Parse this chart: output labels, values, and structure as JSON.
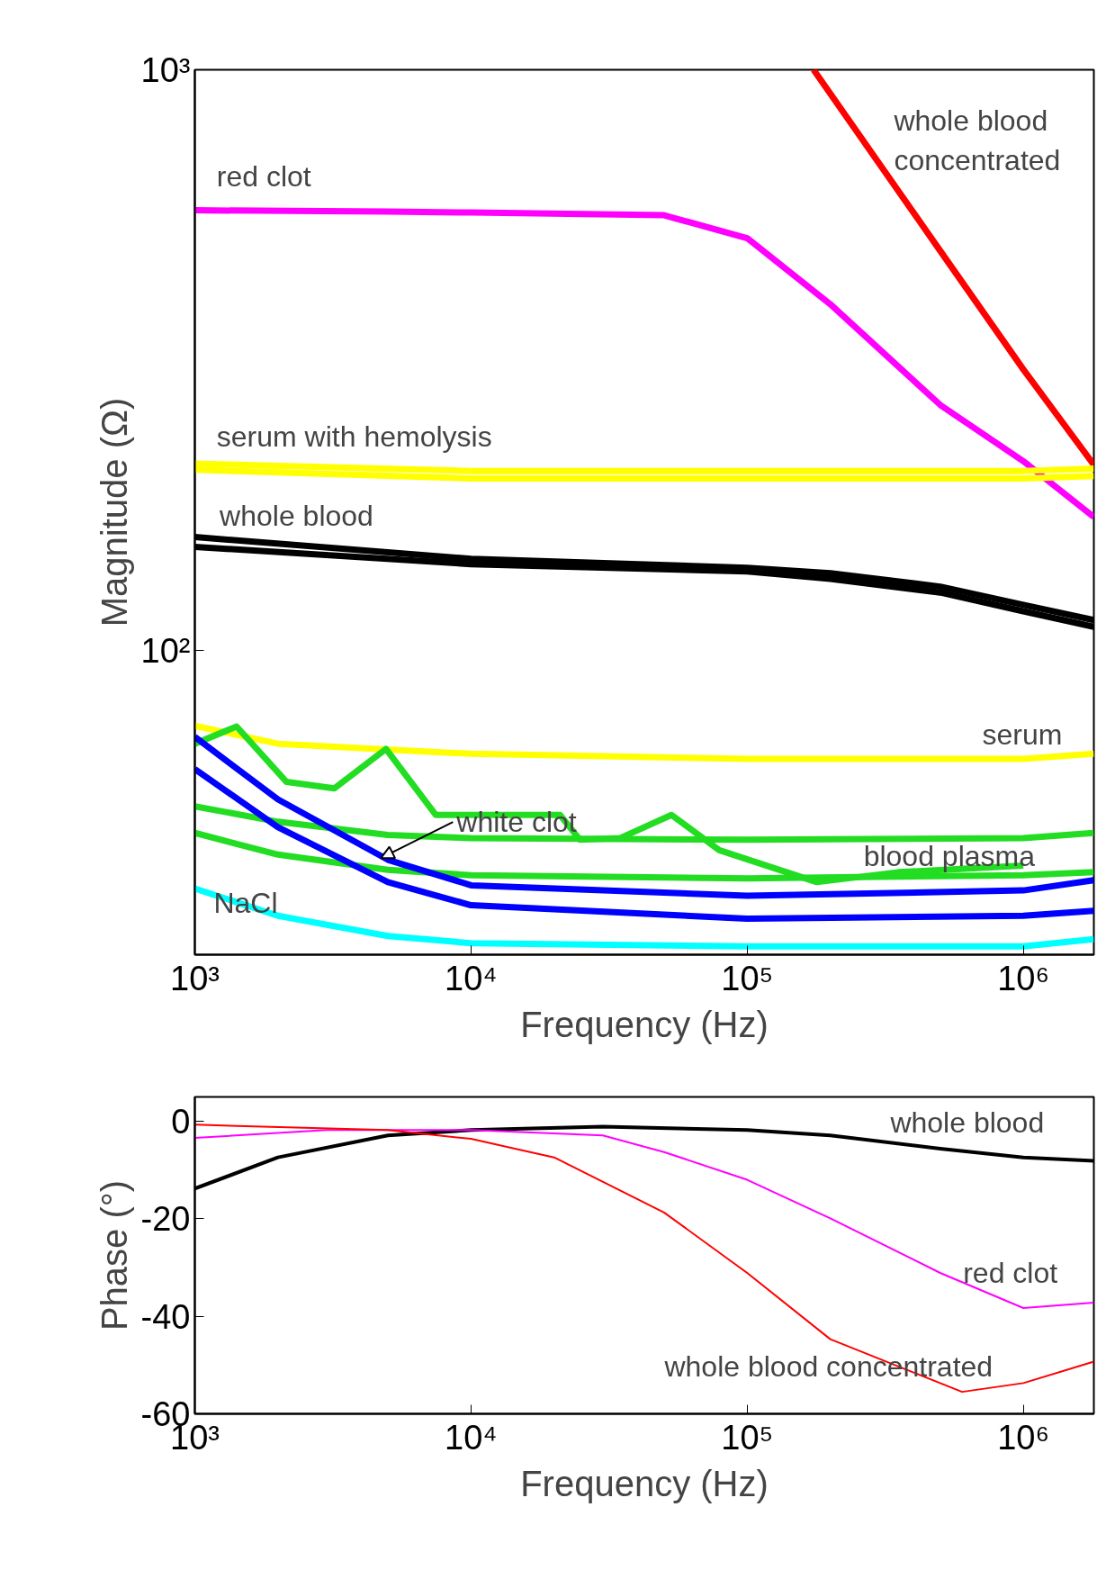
{
  "chart_data": [
    {
      "type": "line",
      "xlabel": "Frequency (Hz)",
      "ylabel": "Magnitude (Ω)",
      "log": "xy",
      "grid": false,
      "line_style": "solid",
      "xlim": [
        1000,
        1800000
      ],
      "ylim": [
        30,
        1000
      ],
      "xticks": [
        {
          "value": 1000,
          "label": "10³"
        },
        {
          "value": 10000,
          "label": "10⁴"
        },
        {
          "value": 100000,
          "label": "10⁵"
        },
        {
          "value": 1000000,
          "label": "10⁶"
        }
      ],
      "yticks": [
        {
          "value": 100,
          "label": "10²"
        },
        {
          "value": 1000,
          "label": "10³"
        }
      ],
      "series": [
        {
          "color": "#ff00ff",
          "x": [
            1000,
            5000,
            10000,
            50000,
            100000,
            200000,
            500000,
            1000000,
            1800000
          ],
          "values": [
            573,
            570,
            568,
            562,
            513,
            395,
            265,
            212,
            170
          ]
        },
        {
          "color": "#ff0000",
          "x": [
            174000,
            500000,
            1000000,
            1800000
          ],
          "values": [
            1000,
            488,
            305,
            209
          ]
        },
        {
          "color": "#ffff00",
          "x": [
            1000,
            10000,
            100000,
            1000000,
            1800000
          ],
          "values": [
            210,
            204,
            204,
            204,
            206
          ]
        },
        {
          "color": "#ffff00",
          "x": [
            1000,
            10000,
            100000,
            1000000,
            1800000
          ],
          "values": [
            205,
            198,
            198,
            198,
            200
          ]
        },
        {
          "color": "#000000",
          "x": [
            1000,
            10000,
            100000,
            200000,
            500000,
            1000000,
            1800000
          ],
          "values": [
            157,
            144,
            139,
            136,
            129,
            120,
            113
          ]
        },
        {
          "color": "#000000",
          "x": [
            1000,
            10000,
            100000,
            200000,
            500000,
            1000000,
            1800000
          ],
          "values": [
            151,
            141,
            137,
            133,
            126,
            117,
            110
          ]
        },
        {
          "color": "#ffff00",
          "x": [
            1000,
            2000,
            10000,
            100000,
            1000000,
            1800000
          ],
          "values": [
            74.3,
            69.2,
            66.5,
            65.2,
            65.2,
            66.5
          ]
        },
        {
          "color": "#22dd22",
          "x": [
            1000,
            2000,
            5000,
            10000,
            100000,
            1000000,
            1800000
          ],
          "values": [
            54,
            50.8,
            48.2,
            47.6,
            47.3,
            47.6,
            48.6
          ]
        },
        {
          "color": "#22dd22",
          "x": [
            1000,
            2000,
            5000,
            10000,
            100000,
            1000000,
            1800000
          ],
          "values": [
            48.6,
            44.6,
            42,
            41.1,
            40.6,
            41.1,
            41.6
          ]
        },
        {
          "color": "#22dd22",
          "x": [
            1000,
            1416,
            2148,
            3200,
            4920,
            7450,
            21000,
            24800,
            34600,
            53200,
            79200,
            178600,
            353000,
            1000000
          ],
          "values": [
            69.2,
            74.1,
            59.5,
            58,
            67.8,
            52.2,
            52.2,
            47.3,
            47.6,
            52.2,
            45.4,
            40,
            41.6,
            42.7
          ]
        },
        {
          "color": "#0000ff",
          "x": [
            1000,
            2000,
            5000,
            10000,
            100000,
            1000000,
            1800000
          ],
          "values": [
            71.1,
            55.5,
            43.7,
            39.5,
            37.9,
            38.7,
            40.3
          ]
        },
        {
          "color": "#0000ff",
          "x": [
            1000,
            2000,
            5000,
            10000,
            100000,
            1000000,
            1800000
          ],
          "values": [
            62.6,
            49.7,
            40,
            36.5,
            34.6,
            35,
            35.7
          ]
        },
        {
          "color": "#00ffff",
          "x": [
            1000,
            2000,
            5000,
            10000,
            100000,
            1000000,
            1800000
          ],
          "values": [
            39,
            35,
            32.3,
            31.4,
            31,
            31,
            31.9
          ]
        }
      ],
      "annotations": [
        "red clot",
        "serum with hemolysis",
        "whole blood",
        "serum",
        {
          "text": "white clot",
          "x": 4720,
          "y": 44
        },
        "blood plasma",
        "NaCl",
        "whole blood\nconcentrated"
      ]
    },
    {
      "type": "line",
      "xlabel": "Frequency (Hz)",
      "ylabel": "Phase (°)",
      "log": "x",
      "grid": false,
      "line_style": "solid",
      "xlim": [
        1000,
        1800000
      ],
      "ylim": [
        -60,
        5
      ],
      "xticks": [
        {
          "value": 1000,
          "label": "10³"
        },
        {
          "value": 10000,
          "label": "10⁴"
        },
        {
          "value": 100000,
          "label": "10⁵"
        },
        {
          "value": 1000000,
          "label": "10⁶"
        }
      ],
      "yticks": [
        0,
        -20,
        -40,
        -60
      ],
      "series": [
        {
          "color": "#000000",
          "x": [
            1000,
            2000,
            5000,
            10000,
            30000,
            100000,
            200000,
            500000,
            1000000,
            1800000
          ],
          "values": [
            -13.8,
            -7.4,
            -2.9,
            -1.8,
            -1.1,
            -1.8,
            -2.9,
            -5.6,
            -7.4,
            -8.1
          ]
        },
        {
          "color": "#ff00ff",
          "x": [
            1000,
            3000,
            10000,
            30000,
            50000,
            100000,
            200000,
            500000,
            1000000,
            1800000
          ],
          "values": [
            -3.4,
            -1.8,
            -1.8,
            -2.9,
            -6.3,
            -12,
            -19.9,
            -31.1,
            -38.3,
            -37.2
          ]
        },
        {
          "color": "#ff0000",
          "x": [
            1000,
            5000,
            10000,
            20000,
            50000,
            100000,
            200000,
            600000,
            1000000,
            1800000
          ],
          "values": [
            -0.7,
            -1.8,
            -3.6,
            -7.4,
            -18.7,
            -31.1,
            -44.7,
            -55.5,
            -53.7,
            -49.3
          ]
        }
      ],
      "annotations": [
        "whole blood",
        "red clot",
        "whole blood concentrated"
      ]
    }
  ]
}
